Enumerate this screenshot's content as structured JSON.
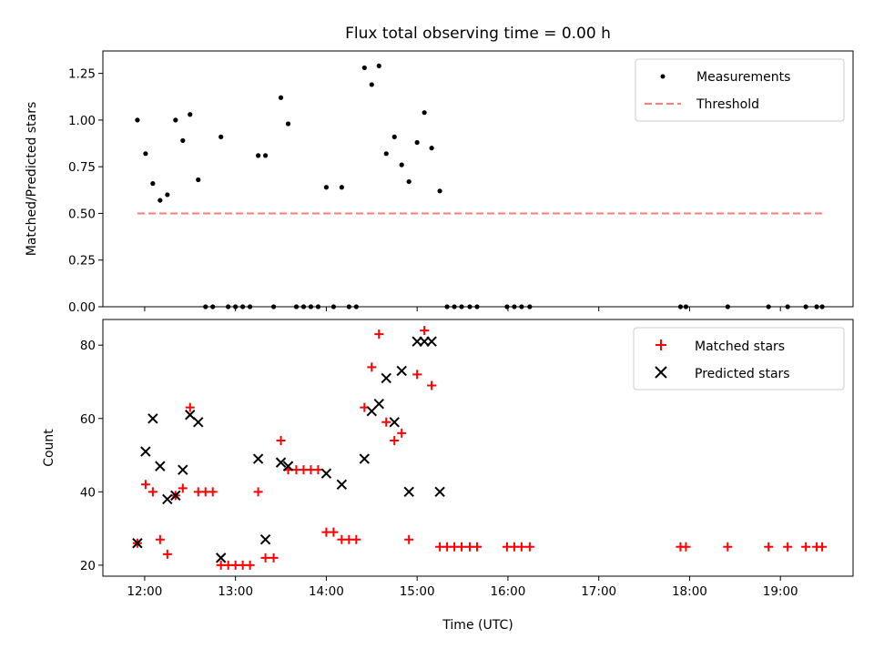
{
  "chart_data": [
    {
      "type": "scatter",
      "title": "Flux total observing time = 0.00 h",
      "xlabel": "",
      "ylabel": "Matched/Predicted stars",
      "xlim": [
        11.54,
        19.8
      ],
      "ylim": [
        0.0,
        1.37
      ],
      "yticks": [
        0.0,
        0.25,
        0.5,
        0.75,
        1.0,
        1.25
      ],
      "ytick_labels": [
        "0.00",
        "0.25",
        "0.50",
        "0.75",
        "1.00",
        "1.25"
      ],
      "xticks": [
        12,
        13,
        14,
        15,
        16,
        17,
        18,
        19
      ],
      "xtick_labels_visible": false,
      "legend": "top-right",
      "series": [
        {
          "name": "Measurements",
          "marker": "dot",
          "color": "#000000",
          "points": [
            [
              11.92,
              1.0
            ],
            [
              12.01,
              0.82
            ],
            [
              12.09,
              0.66
            ],
            [
              12.17,
              0.57
            ],
            [
              12.25,
              0.6
            ],
            [
              12.34,
              1.0
            ],
            [
              12.42,
              0.89
            ],
            [
              12.5,
              1.03
            ],
            [
              12.59,
              0.68
            ],
            [
              12.67,
              0.0
            ],
            [
              12.75,
              0.0
            ],
            [
              12.84,
              0.91
            ],
            [
              12.92,
              0.0
            ],
            [
              13.0,
              0.0
            ],
            [
              13.08,
              0.0
            ],
            [
              13.16,
              0.0
            ],
            [
              13.25,
              0.81
            ],
            [
              13.33,
              0.81
            ],
            [
              13.42,
              0.0
            ],
            [
              13.5,
              1.12
            ],
            [
              13.58,
              0.98
            ],
            [
              13.67,
              0.0
            ],
            [
              13.75,
              0.0
            ],
            [
              13.83,
              0.0
            ],
            [
              13.91,
              0.0
            ],
            [
              14.0,
              0.64
            ],
            [
              14.08,
              0.0
            ],
            [
              14.17,
              0.64
            ],
            [
              14.25,
              0.0
            ],
            [
              14.33,
              0.0
            ],
            [
              14.42,
              1.28
            ],
            [
              14.5,
              1.19
            ],
            [
              14.58,
              1.29
            ],
            [
              14.66,
              0.82
            ],
            [
              14.75,
              0.91
            ],
            [
              14.83,
              0.76
            ],
            [
              14.91,
              0.67
            ],
            [
              15.0,
              0.88
            ],
            [
              15.08,
              1.04
            ],
            [
              15.16,
              0.85
            ],
            [
              15.25,
              0.62
            ],
            [
              15.33,
              0.0
            ],
            [
              15.41,
              0.0
            ],
            [
              15.49,
              0.0
            ],
            [
              15.58,
              0.0
            ],
            [
              15.66,
              0.0
            ],
            [
              15.99,
              0.0
            ],
            [
              16.07,
              0.0
            ],
            [
              16.15,
              0.0
            ],
            [
              16.24,
              0.0
            ],
            [
              17.9,
              0.0
            ],
            [
              17.96,
              0.0
            ],
            [
              18.42,
              0.0
            ],
            [
              18.87,
              0.0
            ],
            [
              19.08,
              0.0
            ],
            [
              19.28,
              0.0
            ],
            [
              19.4,
              0.0
            ],
            [
              19.46,
              0.0
            ]
          ]
        },
        {
          "name": "Threshold",
          "style": "dashed",
          "color": "#ff7b7b",
          "points": [
            [
              11.92,
              0.5
            ],
            [
              19.46,
              0.5
            ]
          ]
        }
      ]
    },
    {
      "type": "scatter",
      "title": "",
      "xlabel": "Time (UTC)",
      "ylabel": "Count",
      "xlim": [
        11.54,
        19.8
      ],
      "ylim": [
        17,
        87
      ],
      "yticks": [
        20,
        40,
        60,
        80
      ],
      "ytick_labels": [
        "20",
        "40",
        "60",
        "80"
      ],
      "xticks": [
        12,
        13,
        14,
        15,
        16,
        17,
        18,
        19
      ],
      "xtick_labels": [
        "12:00",
        "13:00",
        "14:00",
        "15:00",
        "16:00",
        "17:00",
        "18:00",
        "19:00"
      ],
      "legend": "top-right",
      "series": [
        {
          "name": "Matched stars",
          "marker": "plus",
          "color": "#ff0000",
          "points": [
            [
              11.92,
              26
            ],
            [
              12.01,
              42
            ],
            [
              12.09,
              40
            ],
            [
              12.17,
              27
            ],
            [
              12.25,
              23
            ],
            [
              12.34,
              39
            ],
            [
              12.42,
              41
            ],
            [
              12.5,
              63
            ],
            [
              12.59,
              40
            ],
            [
              12.67,
              40
            ],
            [
              12.75,
              40
            ],
            [
              12.84,
              20
            ],
            [
              12.92,
              20
            ],
            [
              13.0,
              20
            ],
            [
              13.08,
              20
            ],
            [
              13.16,
              20
            ],
            [
              13.25,
              40
            ],
            [
              13.33,
              22
            ],
            [
              13.42,
              22
            ],
            [
              13.5,
              54
            ],
            [
              13.58,
              46
            ],
            [
              13.67,
              46
            ],
            [
              13.75,
              46
            ],
            [
              13.83,
              46
            ],
            [
              13.91,
              46
            ],
            [
              14.0,
              29
            ],
            [
              14.08,
              29
            ],
            [
              14.17,
              27
            ],
            [
              14.25,
              27
            ],
            [
              14.33,
              27
            ],
            [
              14.42,
              63
            ],
            [
              14.5,
              74
            ],
            [
              14.58,
              83
            ],
            [
              14.66,
              59
            ],
            [
              14.75,
              54
            ],
            [
              14.83,
              56
            ],
            [
              14.91,
              27
            ],
            [
              15.0,
              72
            ],
            [
              15.08,
              84
            ],
            [
              15.16,
              69
            ],
            [
              15.25,
              25
            ],
            [
              15.33,
              25
            ],
            [
              15.41,
              25
            ],
            [
              15.49,
              25
            ],
            [
              15.58,
              25
            ],
            [
              15.66,
              25
            ],
            [
              15.99,
              25
            ],
            [
              16.07,
              25
            ],
            [
              16.15,
              25
            ],
            [
              16.24,
              25
            ],
            [
              17.9,
              25
            ],
            [
              17.96,
              25
            ],
            [
              18.42,
              25
            ],
            [
              18.87,
              25
            ],
            [
              19.08,
              25
            ],
            [
              19.28,
              25
            ],
            [
              19.4,
              25
            ],
            [
              19.46,
              25
            ]
          ]
        },
        {
          "name": "Predicted stars",
          "marker": "x",
          "color": "#000000",
          "points": [
            [
              11.92,
              26
            ],
            [
              12.01,
              51
            ],
            [
              12.09,
              60
            ],
            [
              12.17,
              47
            ],
            [
              12.25,
              38
            ],
            [
              12.34,
              39
            ],
            [
              12.42,
              46
            ],
            [
              12.5,
              61
            ],
            [
              12.59,
              59
            ],
            [
              12.84,
              22
            ],
            [
              13.25,
              49
            ],
            [
              13.33,
              27
            ],
            [
              13.5,
              48
            ],
            [
              13.58,
              47
            ],
            [
              14.0,
              45
            ],
            [
              14.17,
              42
            ],
            [
              14.42,
              49
            ],
            [
              14.5,
              62
            ],
            [
              14.58,
              64
            ],
            [
              14.66,
              71
            ],
            [
              14.75,
              59
            ],
            [
              14.83,
              73
            ],
            [
              14.91,
              40
            ],
            [
              15.0,
              81
            ],
            [
              15.08,
              81
            ],
            [
              15.16,
              81
            ],
            [
              15.25,
              40
            ]
          ]
        }
      ]
    }
  ]
}
